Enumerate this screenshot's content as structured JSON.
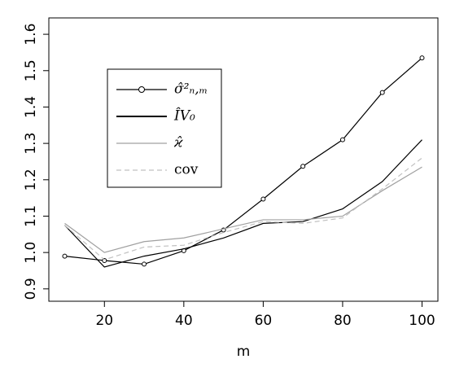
{
  "chart_data": {
    "type": "line",
    "x_label": "m",
    "x": [
      10,
      20,
      30,
      40,
      50,
      60,
      70,
      80,
      90,
      100
    ],
    "series": [
      {
        "name": "σ̂²ₙ,ₘ",
        "color": "#000000",
        "style": "solid-points",
        "values": [
          0.99,
          0.978,
          0.968,
          1.005,
          1.062,
          1.147,
          1.237,
          1.31,
          1.44,
          1.535
        ]
      },
      {
        "name": "ÎV₀",
        "color": "#000000",
        "style": "solid",
        "values": [
          1.075,
          0.96,
          0.99,
          1.01,
          1.04,
          1.08,
          1.085,
          1.12,
          1.195,
          1.31
        ]
      },
      {
        "name": "ϰ̂",
        "color": "#a0a0a0",
        "style": "solid",
        "values": [
          1.08,
          1.0,
          1.03,
          1.04,
          1.065,
          1.09,
          1.09,
          1.1,
          1.17,
          1.235
        ]
      },
      {
        "name": "cov",
        "color": "#c0c0c0",
        "style": "dashed",
        "values": [
          1.075,
          0.98,
          1.015,
          1.02,
          1.055,
          1.085,
          1.08,
          1.095,
          1.175,
          1.26
        ]
      }
    ],
    "xlim": [
      6,
      104
    ],
    "xticks": [
      20,
      40,
      60,
      80,
      100
    ],
    "ylim": [
      0.866,
      1.645
    ],
    "yticks": [
      {
        "value": 0.9,
        "label": "0.9"
      },
      {
        "value": 1.0,
        "label": "1.0"
      },
      {
        "value": 1.1,
        "label": "1.1"
      },
      {
        "value": 1.2,
        "label": "1.2"
      },
      {
        "value": 1.3,
        "label": "1.3"
      },
      {
        "value": 1.4,
        "label": "1.4"
      },
      {
        "value": 1.5,
        "label": "1.5"
      },
      {
        "value": 1.6,
        "label": "1.6"
      }
    ],
    "legend": "top-left"
  }
}
